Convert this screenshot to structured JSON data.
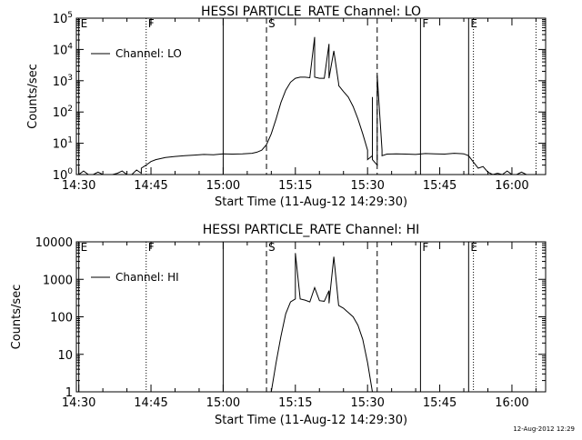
{
  "footer": {
    "timestamp": "12-Aug-2012 12:29"
  },
  "chart_data": [
    {
      "type": "line",
      "title": "HESSI PARTICLE_RATE Channel: LO",
      "xlabel": "Start Time (11-Aug-12 14:29:30)",
      "ylabel": "Counts/sec",
      "xlim": [
        "14:30",
        "16:07"
      ],
      "x_ticks": [
        "14:30",
        "14:45",
        "15:00",
        "15:15",
        "15:30",
        "15:45",
        "16:00"
      ],
      "y_scale": "log",
      "ylim": [
        1,
        100000
      ],
      "y_ticks": [
        {
          "value": 1,
          "base": "10",
          "exp": "0"
        },
        {
          "value": 10,
          "base": "10",
          "exp": "1"
        },
        {
          "value": 100,
          "base": "10",
          "exp": "2"
        },
        {
          "value": 1000,
          "base": "10",
          "exp": "3"
        },
        {
          "value": 10000,
          "base": "10",
          "exp": "4"
        },
        {
          "value": 100000,
          "base": "10",
          "exp": "5"
        }
      ],
      "legend": {
        "entries": [
          "Channel: LO"
        ],
        "placement": "top-left"
      },
      "grid": false,
      "markers": [
        {
          "time": "14:30",
          "label": "E",
          "style": "solid"
        },
        {
          "time": "14:44",
          "label": "F",
          "style": "dotted"
        },
        {
          "time": "15:00",
          "label": "",
          "style": "solid"
        },
        {
          "time": "15:09",
          "label": "S",
          "style": "dashed"
        },
        {
          "time": "15:32",
          "label": "",
          "style": "dashed"
        },
        {
          "time": "15:41",
          "label": "F",
          "style": "solid"
        },
        {
          "time": "15:51",
          "label": "E",
          "style": "solid"
        },
        {
          "time": "15:52",
          "label": "",
          "style": "dotted"
        },
        {
          "time": "16:05",
          "label": "",
          "style": "dotted"
        }
      ],
      "series": [
        {
          "name": "Channel: LO",
          "x": [
            "14:30",
            "14:31",
            "14:32",
            "14:33",
            "14:34",
            "14:35",
            "14:36",
            "14:37",
            "14:38",
            "14:39",
            "14:40",
            "14:41",
            "14:42",
            "14:43",
            "14:43",
            "14:44",
            "14:45",
            "14:46",
            "14:48",
            "14:50",
            "14:52",
            "14:54",
            "14:56",
            "14:58",
            "15:00",
            "15:02",
            "15:04",
            "15:06",
            "15:07",
            "15:08",
            "15:09",
            "15:10",
            "15:11",
            "15:12",
            "15:13",
            "15:14",
            "15:15",
            "15:16",
            "15:17",
            "15:18",
            "15:19",
            "15:19",
            "15:20",
            "15:21",
            "15:22",
            "15:22",
            "15:23",
            "15:24",
            "15:24",
            "15:25",
            "15:26",
            "15:27",
            "15:28",
            "15:29",
            "15:30",
            "15:30",
            "15:31",
            "15:31",
            "15:31",
            "15:32",
            "15:32",
            "15:33",
            "15:33",
            "15:34",
            "15:36",
            "15:38",
            "15:40",
            "15:42",
            "15:44",
            "15:46",
            "15:48",
            "15:50",
            "15:51",
            "15:52",
            "15:53",
            "15:54",
            "15:55",
            "15:56",
            "15:57",
            "15:58",
            "15:59",
            "16:00",
            "16:01",
            "16:02",
            "16:03",
            "16:04",
            "16:05"
          ],
          "y": [
            1,
            1.3,
            1,
            1,
            1.2,
            1,
            1,
            1,
            1.1,
            1.3,
            1,
            1,
            1.4,
            1.1,
            1.6,
            2,
            2.6,
            3,
            3.5,
            3.8,
            4,
            4.2,
            4.4,
            4.3,
            4.6,
            4.5,
            4.6,
            4.8,
            5.2,
            6,
            9,
            20,
            60,
            200,
            500,
            900,
            1200,
            1300,
            1300,
            1250,
            25000,
            1300,
            1200,
            1200,
            15000,
            1200,
            9000,
            800,
            700,
            450,
            300,
            150,
            60,
            20,
            6,
            3,
            4,
            300,
            3,
            2,
            1500,
            6,
            4,
            4.5,
            4.6,
            4.5,
            4.4,
            4.7,
            4.6,
            4.5,
            4.8,
            4.6,
            4,
            2.5,
            1.6,
            1.8,
            1.2,
            1,
            1.1,
            1,
            1.3,
            1,
            1,
            1.2,
            1,
            1,
            1
          ]
        }
      ]
    },
    {
      "type": "line",
      "title": "HESSI PARTICLE_RATE Channel: HI",
      "xlabel": "Start Time (11-Aug-12 14:29:30)",
      "ylabel": "Counts/sec",
      "xlim": [
        "14:30",
        "16:07"
      ],
      "x_ticks": [
        "14:30",
        "14:45",
        "15:00",
        "15:15",
        "15:30",
        "15:45",
        "16:00"
      ],
      "y_scale": "log",
      "ylim": [
        1,
        10000
      ],
      "y_ticks": [
        {
          "value": 1,
          "label": "1"
        },
        {
          "value": 10,
          "label": "10"
        },
        {
          "value": 100,
          "label": "100"
        },
        {
          "value": 1000,
          "label": "1000"
        },
        {
          "value": 10000,
          "label": "10000"
        }
      ],
      "legend": {
        "entries": [
          "Channel: HI"
        ],
        "placement": "top-left"
      },
      "grid": false,
      "markers": [
        {
          "time": "14:30",
          "label": "E",
          "style": "solid"
        },
        {
          "time": "14:44",
          "label": "F",
          "style": "dotted"
        },
        {
          "time": "15:00",
          "label": "",
          "style": "solid"
        },
        {
          "time": "15:09",
          "label": "S",
          "style": "dashed"
        },
        {
          "time": "15:32",
          "label": "",
          "style": "dashed"
        },
        {
          "time": "15:41",
          "label": "F",
          "style": "solid"
        },
        {
          "time": "15:51",
          "label": "E",
          "style": "solid"
        },
        {
          "time": "15:52",
          "label": "",
          "style": "dotted"
        },
        {
          "time": "16:05",
          "label": "",
          "style": "dotted"
        }
      ],
      "series": [
        {
          "name": "Channel: HI",
          "x": [
            "15:10",
            "15:11",
            "15:12",
            "15:13",
            "15:14",
            "15:15",
            "15:15",
            "15:16",
            "15:17",
            "15:18",
            "15:19",
            "15:20",
            "15:21",
            "15:22",
            "15:22",
            "15:23",
            "15:24",
            "15:25",
            "15:26",
            "15:27",
            "15:28",
            "15:29",
            "15:30",
            "15:31"
          ],
          "y": [
            1,
            6,
            30,
            120,
            250,
            300,
            5000,
            300,
            280,
            250,
            600,
            270,
            260,
            500,
            230,
            4000,
            200,
            170,
            130,
            100,
            60,
            25,
            6,
            1
          ]
        }
      ]
    }
  ]
}
